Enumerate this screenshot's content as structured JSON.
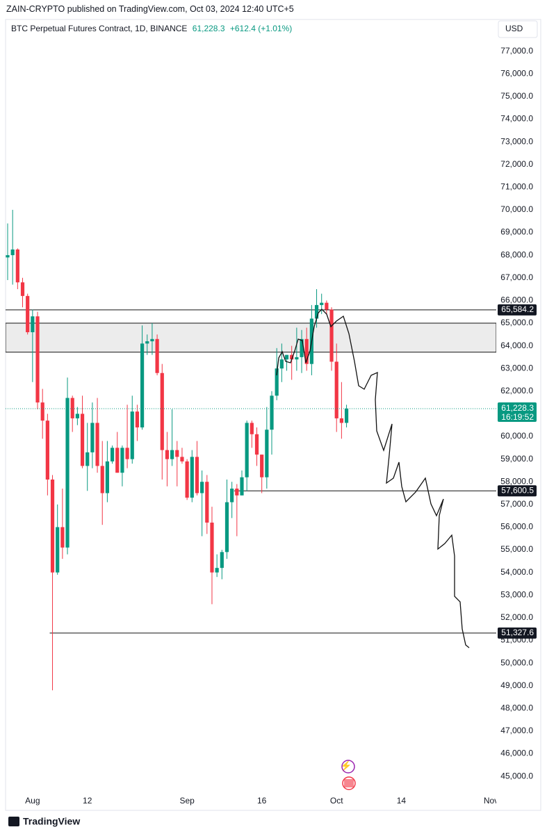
{
  "header": {
    "publisher": "ZAIN-CRYPTO published on TradingView.com, Oct 03, 2024 12:40 UTC+5",
    "symbol": "BTC Perpetual Futures Contract, 1D, BINANCE",
    "change": "+612.4 (+1.01%)",
    "currency": "USD",
    "brand": "TradingView"
  },
  "chart_data": {
    "type": "candlestick",
    "up_color": "#089981",
    "down_color": "#f23645",
    "grid": false,
    "x": [
      "07-27",
      "07-28",
      "07-29",
      "07-30",
      "07-31",
      "08-01",
      "08-02",
      "08-03",
      "08-04",
      "08-05",
      "08-06",
      "08-07",
      "08-08",
      "08-09",
      "08-10",
      "08-11",
      "08-12",
      "08-13",
      "08-14",
      "08-15",
      "08-16",
      "08-17",
      "08-18",
      "08-19",
      "08-20",
      "08-21",
      "08-22",
      "08-23",
      "08-24",
      "08-25",
      "08-26",
      "08-27",
      "08-28",
      "08-29",
      "08-30",
      "08-31",
      "09-01",
      "09-02",
      "09-03",
      "09-04",
      "09-05",
      "09-06",
      "09-07",
      "09-08",
      "09-09",
      "09-10",
      "09-11",
      "09-12",
      "09-13",
      "09-14",
      "09-15",
      "09-16",
      "09-17",
      "09-18",
      "09-19",
      "09-20",
      "09-21",
      "09-22",
      "09-23",
      "09-24",
      "09-25",
      "09-26",
      "09-27",
      "09-28",
      "09-29",
      "09-30",
      "10-01",
      "10-02",
      "10-03"
    ],
    "open": [
      67900,
      68000,
      68250,
      66800,
      66200,
      64600,
      65300,
      61500,
      60700,
      58100,
      54000,
      56000,
      55100,
      61700,
      60800,
      61000,
      58700,
      59300,
      60600,
      58700,
      57500,
      58900,
      59500,
      58400,
      59500,
      59000,
      61100,
      60400,
      64100,
      64200,
      64300,
      62800,
      59400,
      59000,
      59400,
      59100,
      58900,
      57300,
      59100,
      57500,
      58000,
      56200,
      54000,
      54200,
      54900,
      57100,
      57700,
      57400,
      58200,
      60600,
      60100,
      59200,
      58200,
      60300,
      61800,
      63000,
      63400,
      63600,
      63400,
      63500,
      64300,
      63200,
      65200,
      65800,
      65900,
      65600,
      63300,
      60800,
      60600
    ],
    "high": [
      69400,
      70000,
      68300,
      67000,
      66300,
      65600,
      65500,
      62100,
      61000,
      58300,
      57000,
      57700,
      62600,
      61800,
      61300,
      61800,
      60600,
      61500,
      61700,
      59800,
      59800,
      59600,
      60200,
      59600,
      61400,
      61800,
      61400,
      64900,
      64500,
      65000,
      64500,
      63200,
      60200,
      61200,
      59800,
      59500,
      59000,
      59400,
      59800,
      58500,
      58300,
      56900,
      54800,
      55000,
      58100,
      58000,
      57900,
      58500,
      60700,
      60700,
      60400,
      59200,
      61300,
      62000,
      63900,
      64100,
      63600,
      64000,
      64800,
      64700,
      64800,
      65800,
      66500,
      66300,
      66000,
      65700,
      64100,
      62400,
      61400
    ],
    "low": [
      66900,
      66700,
      66500,
      65700,
      64500,
      62400,
      61200,
      59900,
      57400,
      48800,
      53900,
      54600,
      54800,
      60200,
      60500,
      58600,
      57600,
      58600,
      58400,
      56100,
      57100,
      58800,
      58400,
      57800,
      58600,
      58800,
      59800,
      60300,
      63600,
      63600,
      62700,
      58100,
      57800,
      58700,
      57800,
      58800,
      57200,
      57100,
      57400,
      55600,
      55700,
      52600,
      53800,
      53700,
      54600,
      56400,
      55600,
      57400,
      57600,
      59500,
      58700,
      57500,
      57700,
      59200,
      61600,
      62400,
      62900,
      62500,
      62900,
      62800,
      62900,
      62700,
      64800,
      65400,
      65400,
      62900,
      60200,
      59900,
      60400
    ],
    "close": [
      68000,
      68250,
      66800,
      66200,
      64600,
      65300,
      61500,
      60700,
      58100,
      54000,
      56000,
      55100,
      61700,
      60800,
      61000,
      58700,
      59300,
      60600,
      58700,
      57500,
      58900,
      59500,
      58400,
      59500,
      59000,
      61100,
      60400,
      64100,
      64200,
      64300,
      62800,
      59400,
      59000,
      59400,
      59100,
      58900,
      57300,
      59100,
      57500,
      58000,
      56200,
      54000,
      54200,
      54900,
      57100,
      57700,
      57400,
      58200,
      60600,
      60100,
      59200,
      58200,
      60300,
      61800,
      63000,
      63400,
      63600,
      63400,
      63500,
      64300,
      63200,
      65200,
      65800,
      65900,
      65600,
      63300,
      60800,
      60600,
      61228.3
    ],
    "xticks": [
      {
        "value": "08-01",
        "label": "Aug"
      },
      {
        "value": "08-12",
        "label": "12"
      },
      {
        "value": "09-01",
        "label": "Sep"
      },
      {
        "value": "09-16",
        "label": "16"
      },
      {
        "value": "10-01",
        "label": "Oct"
      },
      {
        "value": "10-14",
        "label": "14"
      },
      {
        "value": "11-01",
        "label": "Nov"
      }
    ],
    "ylim": [
      44300,
      78400
    ],
    "yticks": [
      {
        "value": 45000,
        "label": "45,000.0"
      },
      {
        "value": 46000,
        "label": "46,000.0"
      },
      {
        "value": 47000,
        "label": "47,000.0"
      },
      {
        "value": 48000,
        "label": "48,000.0"
      },
      {
        "value": 49000,
        "label": "49,000.0"
      },
      {
        "value": 50000,
        "label": "50,000.0"
      },
      {
        "value": 51000,
        "label": "51,000.0"
      },
      {
        "value": 52000,
        "label": "52,000.0"
      },
      {
        "value": 53000,
        "label": "53,000.0"
      },
      {
        "value": 54000,
        "label": "54,000.0"
      },
      {
        "value": 55000,
        "label": "55,000.0"
      },
      {
        "value": 56000,
        "label": "56,000.0"
      },
      {
        "value": 57000,
        "label": "57,000.0"
      },
      {
        "value": 58000,
        "label": "58,000.0"
      },
      {
        "value": 59000,
        "label": "59,000.0"
      },
      {
        "value": 60000,
        "label": "60,000.0"
      },
      {
        "value": 61000,
        "label": "61,000.0"
      },
      {
        "value": 62000,
        "label": "62,000.0"
      },
      {
        "value": 63000,
        "label": "63,000.0"
      },
      {
        "value": 64000,
        "label": "64,000.0"
      },
      {
        "value": 65000,
        "label": "65,000.0"
      },
      {
        "value": 66000,
        "label": "66,000.0"
      },
      {
        "value": 67000,
        "label": "67,000.0"
      },
      {
        "value": 68000,
        "label": "68,000.0"
      },
      {
        "value": 69000,
        "label": "69,000.0"
      },
      {
        "value": 70000,
        "label": "70,000.0"
      },
      {
        "value": 71000,
        "label": "71,000.0"
      },
      {
        "value": 72000,
        "label": "72,000.0"
      },
      {
        "value": 73000,
        "label": "73,000.0"
      },
      {
        "value": 74000,
        "label": "74,000.0"
      },
      {
        "value": 75000,
        "label": "75,000.0"
      },
      {
        "value": 76000,
        "label": "76,000.0"
      },
      {
        "value": 77000,
        "label": "77,000.0"
      }
    ],
    "zone": {
      "low": 63720,
      "high": 65000
    },
    "levels": [
      {
        "value": 65584.2,
        "label": "65,584.2",
        "from": "07-27"
      },
      {
        "value": 57600.5,
        "label": "57,600.5",
        "from": "09-11"
      },
      {
        "value": 51327.6,
        "label": "51,327.6",
        "from": "08-05"
      }
    ],
    "last": {
      "value": 61228.3,
      "label": "61,228.3",
      "countdown": "16:19:52"
    }
  }
}
